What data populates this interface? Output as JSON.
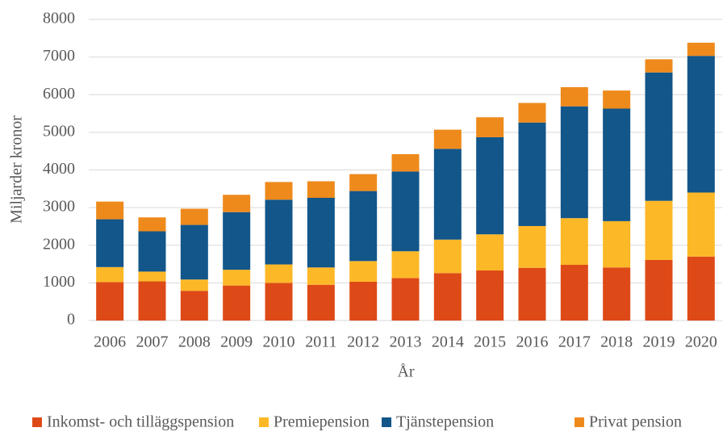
{
  "chart_data": {
    "type": "stacked_bar",
    "x_label": "År",
    "y_label": "Miljarder kronor",
    "categories": [
      "2006",
      "2007",
      "2008",
      "2009",
      "2010",
      "2011",
      "2012",
      "2013",
      "2014",
      "2015",
      "2016",
      "2017",
      "2018",
      "2019",
      "2020"
    ],
    "series": [
      {
        "name": "Inkomst- och tilläggspension",
        "color": "#de4a17",
        "values": [
          1020,
          1040,
          790,
          930,
          1000,
          950,
          1030,
          1130,
          1260,
          1330,
          1400,
          1480,
          1410,
          1610,
          1700
        ]
      },
      {
        "name": "Premiepension",
        "color": "#fdb827",
        "values": [
          400,
          260,
          300,
          420,
          490,
          460,
          550,
          710,
          890,
          960,
          1110,
          1240,
          1230,
          1570,
          1700
        ]
      },
      {
        "name": "Tjänstepension",
        "color": "#12568a",
        "values": [
          1270,
          1070,
          1450,
          1530,
          1720,
          1850,
          1860,
          2120,
          2410,
          2580,
          2750,
          2970,
          2990,
          3410,
          3630
        ]
      },
      {
        "name": "Privat pension",
        "color": "#ee8a1b",
        "values": [
          470,
          370,
          430,
          460,
          470,
          440,
          450,
          460,
          510,
          530,
          520,
          510,
          480,
          350,
          350
        ]
      }
    ],
    "ylim": [
      0,
      8000
    ],
    "yticks": [
      0,
      1000,
      2000,
      3000,
      4000,
      5000,
      6000,
      7000,
      8000
    ],
    "grid": true,
    "legend": "bottom"
  }
}
